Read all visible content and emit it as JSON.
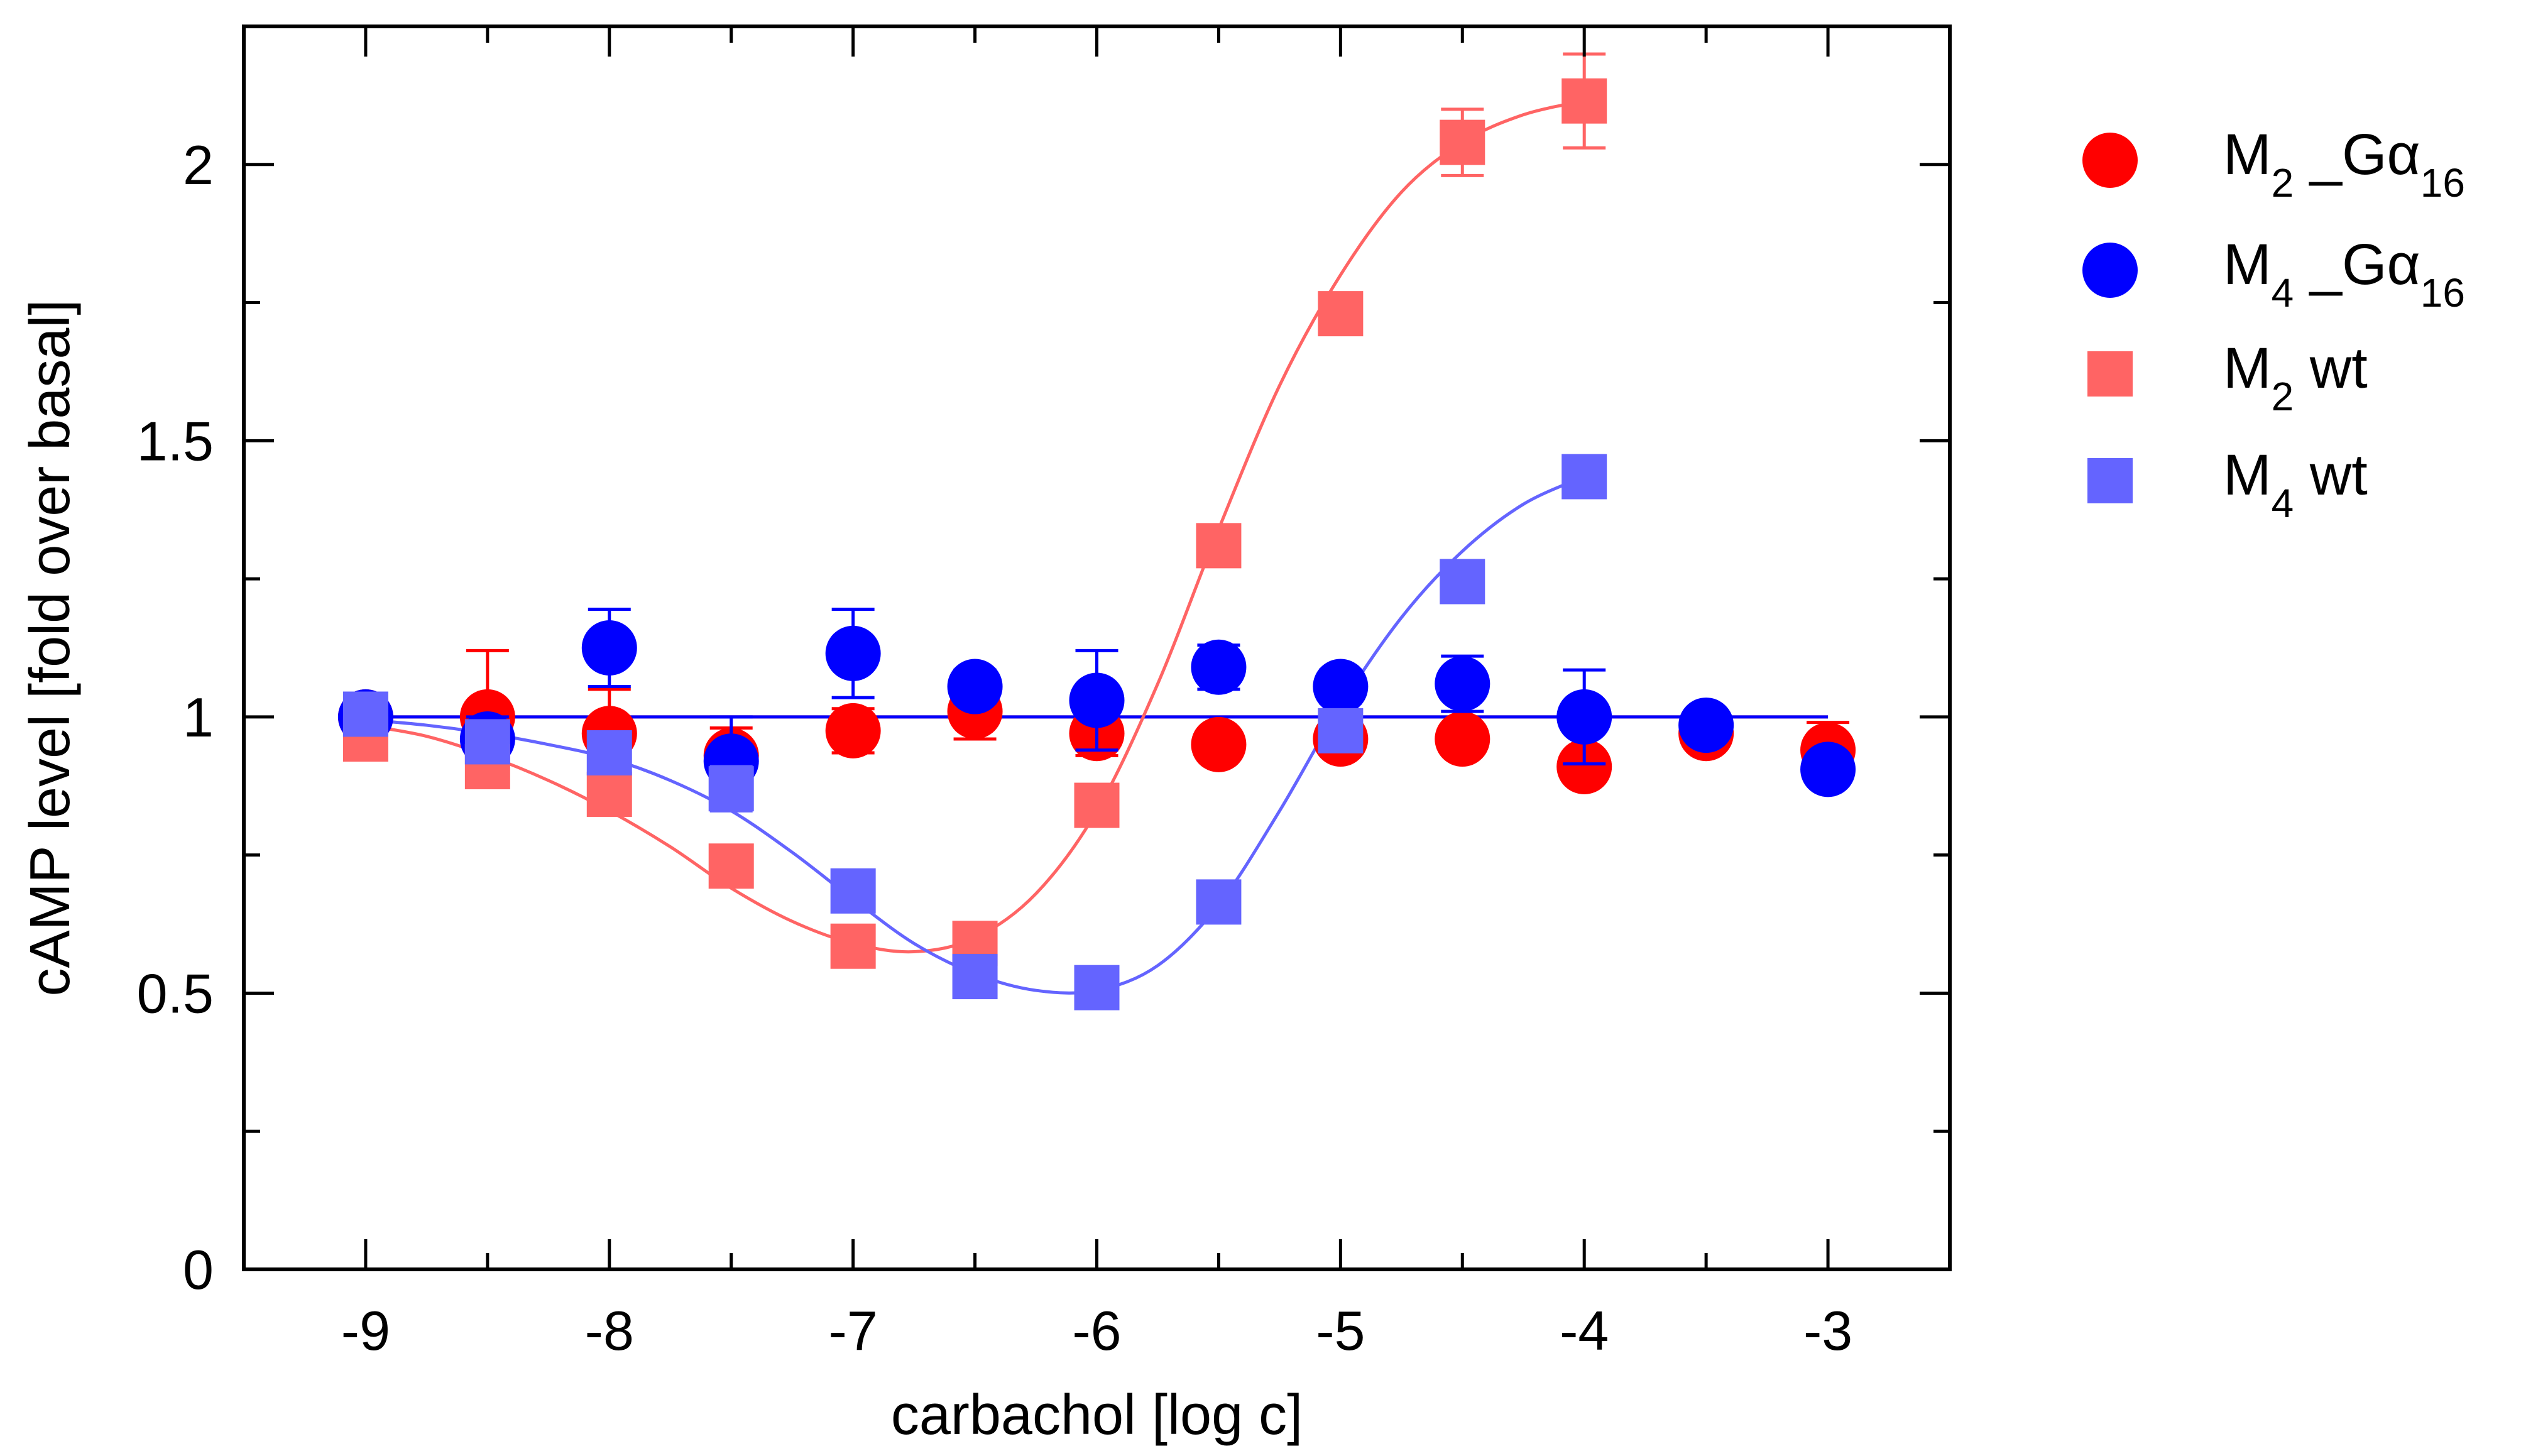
{
  "chart_data": {
    "type": "scatter",
    "title": "",
    "xlabel": "carbachol [log c]",
    "ylabel": "cAMP level [fold over basal]",
    "xlim": [
      -9.5,
      -2.5
    ],
    "ylim": [
      0,
      2.25
    ],
    "x_ticks": [
      -9,
      -8,
      -7,
      -6,
      -5,
      -4,
      -3
    ],
    "x_tick_labels": [
      "-9",
      "-8",
      "-7",
      "-6",
      "-5",
      "-4",
      "-3"
    ],
    "y_ticks": [
      0,
      0.5,
      1,
      1.5,
      2
    ],
    "y_tick_labels": [
      "0",
      "0.5",
      "1",
      "1.5",
      "2"
    ],
    "grid": false,
    "legend_position": "right",
    "series": [
      {
        "name": "M2_Gα16",
        "legend_main": "M",
        "legend_sub": "2",
        "legend_mid": " _Gα",
        "legend_sub2": "16",
        "marker": "circle",
        "color": "#ff0000",
        "x": [
          -9,
          -8.5,
          -8,
          -7.5,
          -7,
          -6.5,
          -6,
          -5.5,
          -5,
          -4.5,
          -4,
          -3.5,
          -3
        ],
        "y": [
          1.0,
          1.0,
          0.97,
          0.93,
          0.975,
          1.01,
          0.97,
          0.95,
          0.96,
          0.96,
          0.91,
          0.97,
          0.94
        ],
        "err": [
          0,
          0.12,
          0.08,
          0.05,
          0.04,
          0.05,
          0.04,
          0,
          0,
          0,
          0,
          0,
          0.05
        ],
        "fit": "horizontal",
        "fit_y": 1.0
      },
      {
        "name": "M4_Gα16",
        "legend_main": "M",
        "legend_sub": "4",
        "legend_mid": " _Gα",
        "legend_sub2": "16",
        "marker": "circle",
        "color": "#0000ff",
        "x": [
          -9,
          -8.5,
          -8,
          -7.5,
          -7,
          -6.5,
          -6,
          -5.5,
          -5,
          -4.5,
          -4,
          -3.5,
          -3
        ],
        "y": [
          1.0,
          0.96,
          1.125,
          0.92,
          1.115,
          1.055,
          1.03,
          1.09,
          1.055,
          1.06,
          1.0,
          0.985,
          0.905
        ],
        "err": [
          0,
          0.04,
          0.07,
          0.08,
          0.08,
          0.03,
          0.09,
          0.04,
          0.03,
          0.05,
          0.085,
          0.02,
          0
        ],
        "fit": "horizontal",
        "fit_y": 1.0
      },
      {
        "name": "M2 wt",
        "legend_main": "M",
        "legend_sub": "2",
        "legend_mid": " wt",
        "legend_sub2": "",
        "marker": "square",
        "color": "#ff6464",
        "x": [
          -9,
          -8.5,
          -8,
          -7.5,
          -7,
          -6.5,
          -6,
          -5.5,
          -5,
          -4.5,
          -4
        ],
        "y": [
          0.96,
          0.91,
          0.86,
          0.73,
          0.585,
          0.59,
          0.84,
          1.31,
          1.73,
          2.04,
          2.115
        ],
        "err": [
          0,
          0.03,
          0.03,
          0.03,
          0.03,
          0,
          0,
          0,
          0.03,
          0.06,
          0.085
        ],
        "fit": "curve",
        "fit_x": [
          -9,
          -8.75,
          -8.5,
          -8.25,
          -8,
          -7.75,
          -7.5,
          -7.25,
          -7,
          -6.75,
          -6.5,
          -6.25,
          -6,
          -5.75,
          -5.5,
          -5.25,
          -5,
          -4.75,
          -4.5,
          -4.25,
          -4
        ],
        "fit_y": [
          0.985,
          0.965,
          0.93,
          0.885,
          0.83,
          0.765,
          0.69,
          0.63,
          0.59,
          0.575,
          0.6,
          0.68,
          0.83,
          1.06,
          1.34,
          1.6,
          1.8,
          1.95,
          2.04,
          2.09,
          2.115
        ]
      },
      {
        "name": "M4 wt",
        "legend_main": "M",
        "legend_sub": "4",
        "legend_mid": " wt",
        "legend_sub2": "",
        "marker": "square",
        "color": "#6464ff",
        "x": [
          -9,
          -8.5,
          -8,
          -7.5,
          -7,
          -6.5,
          -6,
          -5.5,
          -5,
          -4.5,
          -4
        ],
        "y": [
          1.005,
          0.955,
          0.935,
          0.87,
          0.685,
          0.53,
          0.51,
          0.665,
          0.975,
          1.245,
          1.435
        ],
        "err": [
          0,
          0.02,
          0.02,
          0.04,
          0.02,
          0,
          0,
          0,
          0.03,
          0.02,
          0.02
        ],
        "fit": "curve",
        "fit_x": [
          -9,
          -8.75,
          -8.5,
          -8.25,
          -8,
          -7.75,
          -7.5,
          -7.25,
          -7,
          -6.75,
          -6.5,
          -6.25,
          -6,
          -5.75,
          -5.5,
          -5.25,
          -5,
          -4.75,
          -4.5,
          -4.25,
          -4
        ],
        "fit_y": [
          0.995,
          0.985,
          0.97,
          0.95,
          0.925,
          0.885,
          0.83,
          0.755,
          0.67,
          0.59,
          0.535,
          0.505,
          0.505,
          0.55,
          0.66,
          0.83,
          1.02,
          1.18,
          1.3,
          1.385,
          1.435
        ]
      }
    ]
  }
}
